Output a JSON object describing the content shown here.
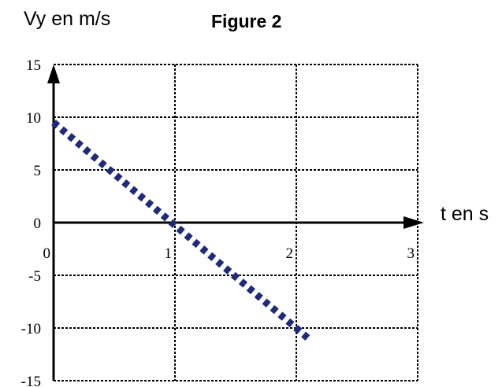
{
  "figure_label": "Figure 2",
  "colors": {
    "line": "#1f2a7a",
    "axis": "#000000",
    "grid": "#000000"
  },
  "chart_data": {
    "type": "line",
    "title": "",
    "xlabel": "t en s",
    "ylabel": "Vy en m/s",
    "xlim": [
      0,
      3
    ],
    "ylim": [
      -15,
      15
    ],
    "x_ticks": [
      0,
      1,
      2,
      3
    ],
    "x_tick_labels": [
      "0",
      "1",
      "2",
      "3"
    ],
    "y_ticks": [
      15,
      10,
      5,
      0,
      -5,
      -10,
      -15
    ],
    "y_tick_labels": [
      "15",
      "10",
      "5",
      "0",
      "-5",
      "-10",
      "-15"
    ],
    "grid": true,
    "line_style": "dotted",
    "series": [
      {
        "x": [
          0,
          2.1
        ],
        "y": [
          9.5,
          -11
        ]
      }
    ]
  }
}
